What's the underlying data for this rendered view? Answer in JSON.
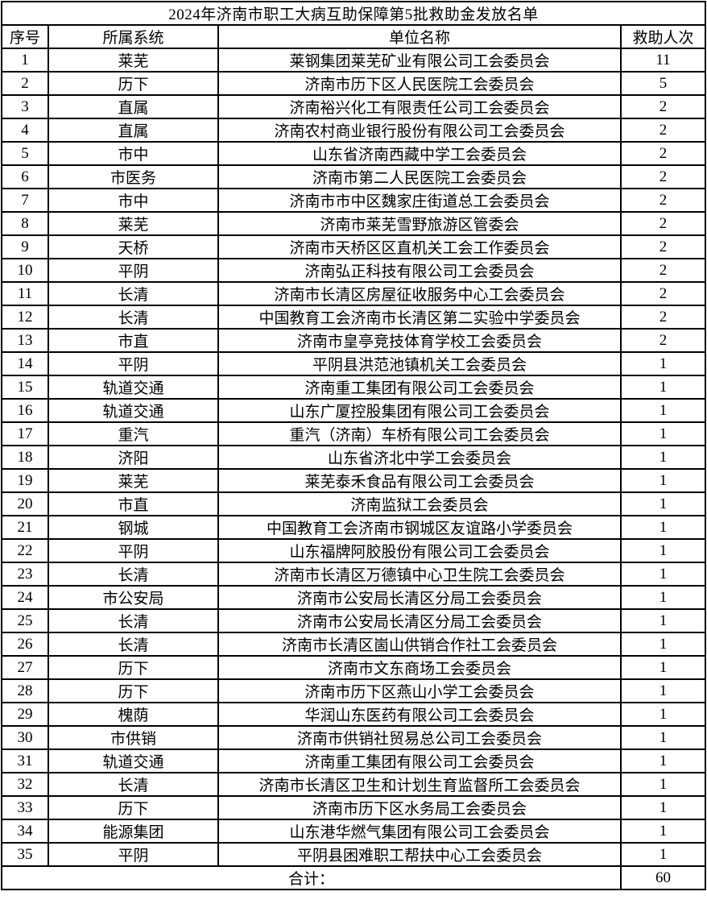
{
  "title": "2024年济南市职工大病互助保障第5批救助金发放名单",
  "table": {
    "columns": [
      "序号",
      "所属系统",
      "单位名称",
      "救助人次"
    ],
    "rows": [
      {
        "seq": "1",
        "system": "莱芜",
        "unit": "莱钢集团莱芜矿业有限公司工会委员会",
        "count": "11"
      },
      {
        "seq": "2",
        "system": "历下",
        "unit": "济南市历下区人民医院工会委员会",
        "count": "5"
      },
      {
        "seq": "3",
        "system": "直属",
        "unit": "济南裕兴化工有限责任公司工会委员会",
        "count": "2"
      },
      {
        "seq": "4",
        "system": "直属",
        "unit": "济南农村商业银行股份有限公司工会委员会",
        "count": "2"
      },
      {
        "seq": "5",
        "system": "市中",
        "unit": "山东省济南西藏中学工会委员会",
        "count": "2"
      },
      {
        "seq": "6",
        "system": "市医务",
        "unit": "济南市第二人民医院工会委员会",
        "count": "2"
      },
      {
        "seq": "7",
        "system": "市中",
        "unit": "济南市市中区魏家庄街道总工会委员会",
        "count": "2"
      },
      {
        "seq": "8",
        "system": "莱芜",
        "unit": "济南市莱芜雪野旅游区管委会",
        "count": "2"
      },
      {
        "seq": "9",
        "system": "天桥",
        "unit": "济南市天桥区区直机关工会工作委员会",
        "count": "2"
      },
      {
        "seq": "10",
        "system": "平阴",
        "unit": "济南弘正科技有限公司工会委员会",
        "count": "2"
      },
      {
        "seq": "11",
        "system": "长清",
        "unit": "济南市长清区房屋征收服务中心工会委员会",
        "count": "2"
      },
      {
        "seq": "12",
        "system": "长清",
        "unit": "中国教育工会济南市长清区第二实验中学委员会",
        "count": "2"
      },
      {
        "seq": "13",
        "system": "市直",
        "unit": "济南市皇亭竞技体育学校工会委员会",
        "count": "2"
      },
      {
        "seq": "14",
        "system": "平阴",
        "unit": "平阴县洪范池镇机关工会委员会",
        "count": "1"
      },
      {
        "seq": "15",
        "system": "轨道交通",
        "unit": "济南重工集团有限公司工会委员会",
        "count": "1"
      },
      {
        "seq": "16",
        "system": "轨道交通",
        "unit": "山东广厦控股集团有限公司工会委员会",
        "count": "1"
      },
      {
        "seq": "17",
        "system": "重汽",
        "unit": "重汽（济南）车桥有限公司工会委员会",
        "count": "1"
      },
      {
        "seq": "18",
        "system": "济阳",
        "unit": "山东省济北中学工会委员会",
        "count": "1"
      },
      {
        "seq": "19",
        "system": "莱芜",
        "unit": "莱芜泰禾食品有限公司工会委员会",
        "count": "1"
      },
      {
        "seq": "20",
        "system": "市直",
        "unit": "济南监狱工会委员会",
        "count": "1"
      },
      {
        "seq": "21",
        "system": "钢城",
        "unit": "中国教育工会济南市钢城区友谊路小学委员会",
        "count": "1"
      },
      {
        "seq": "22",
        "system": "平阴",
        "unit": "山东福牌阿胶股份有限公司工会委员会",
        "count": "1"
      },
      {
        "seq": "23",
        "system": "长清",
        "unit": "济南市长清区万德镇中心卫生院工会委员会",
        "count": "1"
      },
      {
        "seq": "24",
        "system": "市公安局",
        "unit": "济南市公安局长清区分局工会委员会",
        "count": "1"
      },
      {
        "seq": "25",
        "system": "长清",
        "unit": "济南市公安局长清区分局工会委员会",
        "count": "1"
      },
      {
        "seq": "26",
        "system": "长清",
        "unit": "济南市长清区崮山供销合作社工会委员会",
        "count": "1"
      },
      {
        "seq": "27",
        "system": "历下",
        "unit": "济南市文东商场工会委员会",
        "count": "1"
      },
      {
        "seq": "28",
        "system": "历下",
        "unit": "济南市历下区燕山小学工会委员会",
        "count": "1"
      },
      {
        "seq": "29",
        "system": "槐荫",
        "unit": "华润山东医药有限公司工会委员会",
        "count": "1"
      },
      {
        "seq": "30",
        "system": "市供销",
        "unit": "济南市供销社贸易总公司工会委员会",
        "count": "1"
      },
      {
        "seq": "31",
        "system": "轨道交通",
        "unit": "济南重工集团有限公司工会委员会",
        "count": "1"
      },
      {
        "seq": "32",
        "system": "长清",
        "unit": "济南市长清区卫生和计划生育监督所工会委员会",
        "count": "1"
      },
      {
        "seq": "33",
        "system": "历下",
        "unit": "济南市历下区水务局工会委员会",
        "count": "1"
      },
      {
        "seq": "34",
        "system": "能源集团",
        "unit": "山东港华燃气集团有限公司工会委员会",
        "count": "1"
      },
      {
        "seq": "35",
        "system": "平阴",
        "unit": "平阴县困难职工帮扶中心工会委员会",
        "count": "1"
      }
    ],
    "total_label": "合计：",
    "total_value": "60"
  },
  "colors": {
    "background": "#ffffff",
    "border": "#000000",
    "text": "#000000"
  }
}
